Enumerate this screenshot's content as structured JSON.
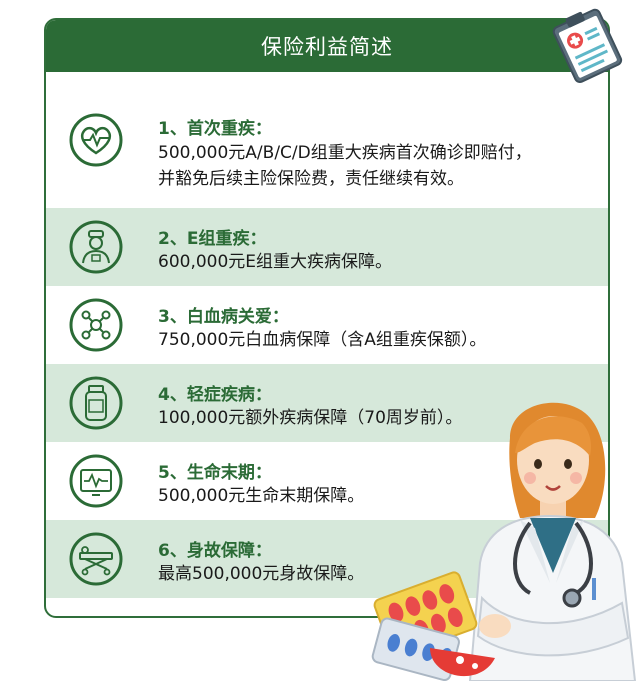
{
  "header": {
    "title": "保险利益简述"
  },
  "items": [
    {
      "title": "1、首次重疾：",
      "lines": [
        "500,000元A/B/C/D组重大疾病首次确诊即赔付，",
        "并豁免后续主险保险费，责任继续有效。"
      ],
      "icon": "heart-pulse-icon"
    },
    {
      "title": "2、E组重疾：",
      "lines": [
        "600,000元E组重大疾病保障。"
      ],
      "icon": "doctor-icon"
    },
    {
      "title": "3、白血病关爱：",
      "lines": [
        "750,000元白血病保障（含A组重疾保额）。"
      ],
      "icon": "molecule-icon"
    },
    {
      "title": "4、轻症疾病：",
      "lines": [
        "100,000元额外疾病保障（70周岁前）。"
      ],
      "icon": "medicine-bottle-icon"
    },
    {
      "title": "5、生命末期：",
      "lines": [
        "500,000元生命末期保障。"
      ],
      "icon": "heart-monitor-icon"
    },
    {
      "title": "6、身故保障：",
      "lines": [
        "最高500,000元身故保障。"
      ],
      "icon": "stretcher-icon"
    }
  ],
  "colors": {
    "primary": "#2b6b36",
    "alt_row": "#d6e8da",
    "text": "#1a1a1a"
  }
}
